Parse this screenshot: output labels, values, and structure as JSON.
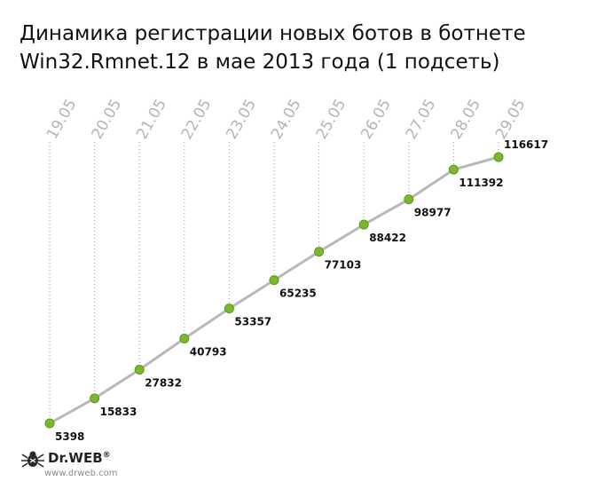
{
  "chart_data": {
    "type": "line",
    "title_lines": [
      "Динамика регистрации новых ботов в ботнете",
      "Win32.Rmnet.12 в мае 2013 года (1 подсеть)"
    ],
    "categories": [
      "19.05",
      "20.05",
      "21.05",
      "22.05",
      "23.05",
      "24.05",
      "25.05",
      "26.05",
      "27.05",
      "28.05",
      "29.05"
    ],
    "values": [
      5398,
      15833,
      27832,
      40793,
      53357,
      65235,
      77103,
      88422,
      98977,
      111392,
      116617
    ],
    "ylim": [
      5398,
      116617
    ],
    "grid": "vertical dotted lines per category",
    "line_color": "#b8b8b8",
    "marker_color": "#7cb82f",
    "marker_stroke": "#5a9a1a",
    "tick_color": "#b5b5b5"
  },
  "branding": {
    "logo_text": "Dr.WEB",
    "logo_mark": "®",
    "logo_icon": "spider-icon",
    "site": "www.drweb.com"
  }
}
